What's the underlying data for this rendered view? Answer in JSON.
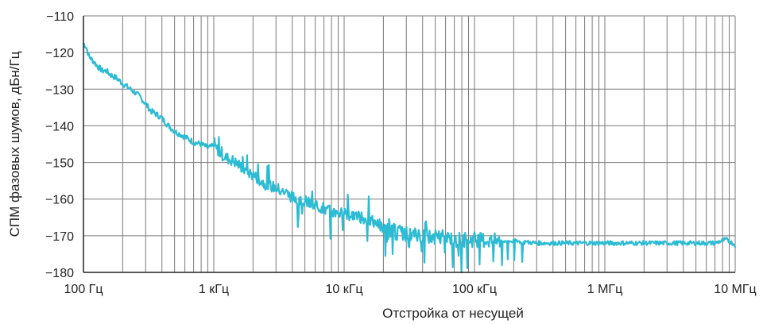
{
  "chart_data": {
    "type": "line",
    "title": "",
    "xlabel": "Отстройка от несущей",
    "ylabel": "СПМ фазовых шумов, дБн/Гц",
    "x_scale": "log",
    "xlim": [
      100,
      10000000
    ],
    "ylim": [
      -180,
      -110
    ],
    "grid": true,
    "x_ticks": [
      {
        "value": 100,
        "label": "100 Гц"
      },
      {
        "value": 1000,
        "label": "1 кГц"
      },
      {
        "value": 10000,
        "label": "10 кГц"
      },
      {
        "value": 100000,
        "label": "100 кГц"
      },
      {
        "value": 1000000,
        "label": "1 МГц"
      },
      {
        "value": 10000000,
        "label": "10 МГц"
      }
    ],
    "y_ticks": [
      {
        "value": -110,
        "label": "−110"
      },
      {
        "value": -120,
        "label": "−120"
      },
      {
        "value": -130,
        "label": "−130"
      },
      {
        "value": -140,
        "label": "−140"
      },
      {
        "value": -150,
        "label": "−150"
      },
      {
        "value": -160,
        "label": "−160"
      },
      {
        "value": -170,
        "label": "−170"
      },
      {
        "value": -180,
        "label": "−180"
      }
    ],
    "colors": {
      "line": "#2bbcd4",
      "grid": "#7a7a7a",
      "axis": "#222222"
    },
    "series": [
      {
        "x": [
          100,
          105,
          110,
          120,
          130,
          140,
          150,
          160,
          180,
          200,
          220,
          250,
          270,
          300,
          330,
          370,
          400,
          450,
          500,
          600,
          700,
          800,
          900,
          1000,
          1100,
          1200,
          1400,
          1600,
          1800,
          2000,
          2200,
          2500,
          3000,
          3500,
          4000,
          5000,
          6000,
          7000,
          8000,
          10000,
          12000,
          15000,
          18000,
          20000,
          25000,
          30000,
          40000,
          50000,
          70000,
          100000,
          150000,
          200000,
          300000,
          500000,
          700000,
          1000000,
          1500000,
          2000000,
          3000000,
          5000000,
          7000000,
          8500000,
          10000000
        ],
        "y": [
          -117.5,
          -118.5,
          -121,
          -122.5,
          -124,
          -125,
          -125,
          -126,
          -127,
          -128.5,
          -129.5,
          -131,
          -132,
          -134,
          -136,
          -137,
          -138,
          -140,
          -141.5,
          -143,
          -144.5,
          -145,
          -146,
          -145.5,
          -147,
          -148.5,
          -149.5,
          -151,
          -152.5,
          -153.5,
          -154.5,
          -156,
          -157,
          -158,
          -159.5,
          -160.5,
          -162,
          -162.5,
          -163.5,
          -164,
          -164.5,
          -165.5,
          -166,
          -168.5,
          -169,
          -169.5,
          -170,
          -170.5,
          -171,
          -171,
          -171.5,
          -171.5,
          -172,
          -172,
          -172,
          -172,
          -172,
          -172,
          -172,
          -172,
          -172,
          -171,
          -172.5
        ]
      }
    ]
  }
}
